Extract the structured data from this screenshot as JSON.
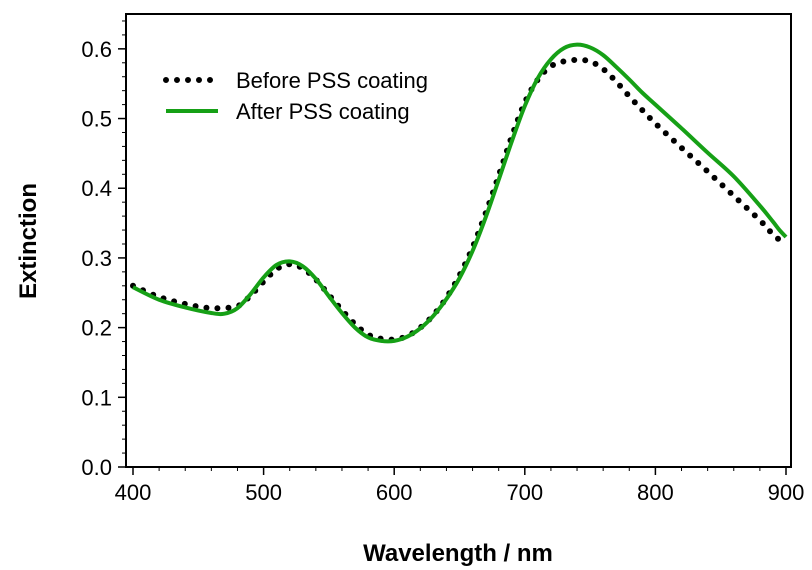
{
  "chart_data": {
    "type": "line",
    "title": "",
    "xlabel": "Wavelength / nm",
    "ylabel": "Extinction",
    "xlim": [
      400,
      900
    ],
    "ylim": [
      0.0,
      0.65
    ],
    "grid": false,
    "legend_position": "top-left",
    "x_ticks": [
      400,
      500,
      600,
      700,
      800,
      900
    ],
    "x_tick_labels": [
      "400",
      "500",
      "600",
      "700",
      "800",
      "900"
    ],
    "y_ticks": [
      0.0,
      0.1,
      0.2,
      0.3,
      0.4,
      0.5,
      0.6
    ],
    "y_tick_labels": [
      "0.0",
      "0.1",
      "0.2",
      "0.3",
      "0.4",
      "0.5",
      "0.6"
    ],
    "series": [
      {
        "name": "Before PSS coating",
        "style": "dotted",
        "color": "#000000",
        "x": [
          400,
          420,
          440,
          460,
          480,
          490,
          500,
          510,
          520,
          530,
          540,
          550,
          560,
          570,
          580,
          590,
          600,
          610,
          620,
          630,
          640,
          650,
          660,
          670,
          680,
          690,
          700,
          710,
          720,
          730,
          740,
          750,
          760,
          770,
          780,
          790,
          800,
          820,
          840,
          860,
          880,
          890,
          900
        ],
        "y": [
          0.26,
          0.244,
          0.234,
          0.228,
          0.231,
          0.246,
          0.266,
          0.284,
          0.291,
          0.285,
          0.269,
          0.247,
          0.225,
          0.205,
          0.19,
          0.184,
          0.183,
          0.188,
          0.2,
          0.218,
          0.243,
          0.275,
          0.315,
          0.364,
          0.418,
          0.474,
          0.523,
          0.556,
          0.575,
          0.582,
          0.584,
          0.582,
          0.571,
          0.553,
          0.532,
          0.512,
          0.493,
          0.458,
          0.424,
          0.389,
          0.354,
          0.334,
          0.318
        ]
      },
      {
        "name": "After PSS coating",
        "style": "solid",
        "color": "#16a016",
        "x": [
          400,
          420,
          440,
          460,
          470,
          480,
          490,
          500,
          510,
          520,
          530,
          540,
          550,
          560,
          570,
          580,
          590,
          600,
          610,
          620,
          630,
          640,
          650,
          660,
          670,
          680,
          690,
          700,
          710,
          720,
          730,
          740,
          750,
          760,
          770,
          780,
          790,
          800,
          820,
          840,
          860,
          880,
          890,
          895,
          900
        ],
        "y": [
          0.258,
          0.24,
          0.229,
          0.221,
          0.22,
          0.228,
          0.248,
          0.272,
          0.29,
          0.295,
          0.288,
          0.27,
          0.245,
          0.221,
          0.2,
          0.186,
          0.181,
          0.181,
          0.187,
          0.199,
          0.217,
          0.241,
          0.271,
          0.31,
          0.358,
          0.412,
          0.467,
          0.518,
          0.558,
          0.585,
          0.601,
          0.606,
          0.602,
          0.591,
          0.574,
          0.556,
          0.537,
          0.52,
          0.486,
          0.451,
          0.417,
          0.375,
          0.352,
          0.34,
          0.33
        ]
      }
    ]
  }
}
